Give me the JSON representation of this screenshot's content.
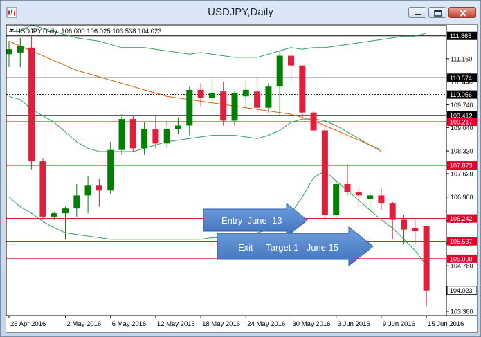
{
  "window": {
    "title": "USDJPY,Daily",
    "icons": {
      "app": "chart-app-icon",
      "minimize": "minimize-icon",
      "maximize": "maximize-icon",
      "close": "close-icon"
    }
  },
  "chart_header": {
    "dropdown_icon": "triangle-down-icon",
    "info": "USDJPY,Daily  106.000 106.025 103.538 104.023"
  },
  "chart_data": {
    "type": "candlestick",
    "symbol": "USDJPY",
    "timeframe": "Daily",
    "ylim": [
      103.25,
      112.2
    ],
    "y_ticks": [
      "111.160",
      "110.440",
      "109.740",
      "109.040",
      "108.320",
      "107.620",
      "106.900",
      "106.180",
      "105.480",
      "104.780",
      "103.380"
    ],
    "x_ticks": [
      "26 Apr 2016",
      "2 May 2016",
      "6 May 2016",
      "12 May 2016",
      "18 May 2016",
      "24 May 2016",
      "30 May 2016",
      "3 Jun 2016",
      "9 Jun 2016",
      "15 Jun 2016"
    ],
    "x_tick_index": [
      0,
      5,
      9,
      13,
      17,
      21,
      25,
      29,
      33,
      37
    ],
    "candles": [
      {
        "o": 111.3,
        "h": 111.7,
        "l": 110.9,
        "c": 111.45
      },
      {
        "o": 111.35,
        "h": 111.8,
        "l": 110.9,
        "c": 111.55
      },
      {
        "o": 111.5,
        "h": 111.9,
        "l": 107.75,
        "c": 108.0
      },
      {
        "o": 108.0,
        "h": 108.1,
        "l": 106.2,
        "c": 106.3
      },
      {
        "o": 106.3,
        "h": 106.45,
        "l": 106.2,
        "c": 106.4
      },
      {
        "o": 106.4,
        "h": 106.6,
        "l": 105.6,
        "c": 106.55
      },
      {
        "o": 106.55,
        "h": 107.3,
        "l": 106.3,
        "c": 106.95
      },
      {
        "o": 106.95,
        "h": 107.55,
        "l": 106.4,
        "c": 107.25
      },
      {
        "o": 107.25,
        "h": 107.45,
        "l": 106.6,
        "c": 107.1
      },
      {
        "o": 107.1,
        "h": 108.6,
        "l": 107.0,
        "c": 108.35
      },
      {
        "o": 108.35,
        "h": 109.45,
        "l": 108.2,
        "c": 109.3
      },
      {
        "o": 109.3,
        "h": 109.4,
        "l": 108.3,
        "c": 108.4
      },
      {
        "o": 108.4,
        "h": 109.2,
        "l": 108.2,
        "c": 109.0
      },
      {
        "o": 109.0,
        "h": 109.4,
        "l": 108.4,
        "c": 108.55
      },
      {
        "o": 108.55,
        "h": 109.2,
        "l": 108.45,
        "c": 109.0
      },
      {
        "o": 109.0,
        "h": 109.35,
        "l": 108.85,
        "c": 109.1
      },
      {
        "o": 109.1,
        "h": 110.3,
        "l": 108.8,
        "c": 110.2
      },
      {
        "o": 110.2,
        "h": 110.4,
        "l": 109.7,
        "c": 109.95
      },
      {
        "o": 109.95,
        "h": 110.55,
        "l": 109.6,
        "c": 110.1
      },
      {
        "o": 110.15,
        "h": 110.45,
        "l": 109.1,
        "c": 109.25
      },
      {
        "o": 109.25,
        "h": 110.15,
        "l": 109.1,
        "c": 110.1
      },
      {
        "o": 110.0,
        "h": 110.5,
        "l": 109.6,
        "c": 110.2
      },
      {
        "o": 110.15,
        "h": 110.6,
        "l": 109.5,
        "c": 109.65
      },
      {
        "o": 109.65,
        "h": 110.4,
        "l": 109.5,
        "c": 110.3
      },
      {
        "o": 110.3,
        "h": 111.4,
        "l": 109.4,
        "c": 111.25
      },
      {
        "o": 111.25,
        "h": 111.4,
        "l": 110.45,
        "c": 110.95
      },
      {
        "o": 110.95,
        "h": 110.95,
        "l": 109.35,
        "c": 109.5
      },
      {
        "o": 109.5,
        "h": 109.55,
        "l": 108.95,
        "c": 108.95
      },
      {
        "o": 108.95,
        "h": 109.05,
        "l": 106.2,
        "c": 106.35
      },
      {
        "o": 106.35,
        "h": 107.4,
        "l": 106.25,
        "c": 107.3
      },
      {
        "o": 107.3,
        "h": 107.9,
        "l": 106.95,
        "c": 107.05
      },
      {
        "o": 107.05,
        "h": 107.2,
        "l": 106.6,
        "c": 106.95
      },
      {
        "o": 106.85,
        "h": 107.05,
        "l": 106.4,
        "c": 106.95
      },
      {
        "o": 106.95,
        "h": 107.2,
        "l": 106.5,
        "c": 106.7
      },
      {
        "o": 106.7,
        "h": 106.75,
        "l": 105.6,
        "c": 106.2
      },
      {
        "o": 106.2,
        "h": 106.35,
        "l": 105.45,
        "c": 105.9
      },
      {
        "o": 105.95,
        "h": 106.25,
        "l": 105.45,
        "c": 105.85
      },
      {
        "o": 106.0,
        "h": 106.025,
        "l": 103.538,
        "c": 104.023
      }
    ],
    "moving_average": {
      "name": "orange-moving-average",
      "values": [
        111.7,
        111.55,
        111.4,
        111.25,
        111.1,
        110.95,
        110.8,
        110.7,
        110.6,
        110.5,
        110.4,
        110.3,
        110.2,
        110.1,
        110.0,
        109.95,
        109.9,
        109.85,
        109.8,
        109.75,
        109.7,
        109.65,
        109.6,
        109.55,
        109.5,
        109.45,
        109.35,
        109.25,
        109.1,
        108.95,
        108.8,
        108.65,
        108.5,
        108.35
      ]
    },
    "bollinger": {
      "upper": [
        112.0,
        112.0,
        112.2,
        112.1,
        112.0,
        111.9,
        111.8,
        111.75,
        111.7,
        111.6,
        111.5,
        111.5,
        111.5,
        111.45,
        111.4,
        111.35,
        111.3,
        111.35,
        111.3,
        111.25,
        111.2,
        111.2,
        111.2,
        111.3,
        111.4,
        111.5,
        111.45,
        111.5,
        111.5,
        111.55,
        111.6,
        111.65,
        111.7,
        111.75,
        111.8,
        111.85,
        111.85,
        111.95
      ],
      "middle": [
        110.0,
        109.9,
        109.6,
        109.4,
        109.2,
        108.9,
        108.6,
        108.4,
        108.3,
        108.3,
        108.3,
        108.3,
        108.4,
        108.5,
        108.6,
        108.65,
        108.7,
        108.75,
        108.8,
        108.8,
        108.8,
        108.75,
        108.7,
        108.8,
        108.95,
        109.2,
        109.3,
        109.3,
        109.25,
        109.1,
        108.9,
        108.7,
        108.5,
        108.3
      ]
    },
    "lower_band": {
      "values": [
        106.9,
        106.6,
        106.4,
        106.15,
        105.95,
        105.8,
        105.75,
        105.7,
        105.65,
        105.6,
        105.6,
        105.6,
        105.6,
        105.6,
        105.6,
        105.6,
        105.6,
        105.6,
        105.65,
        105.65,
        105.7,
        105.75,
        105.8,
        105.9,
        106.1,
        106.4,
        106.9,
        107.5,
        107.7,
        107.4,
        107.1,
        106.8,
        106.5,
        106.2,
        105.95,
        105.6,
        105.25,
        104.8
      ]
    },
    "horizontal_lines": [
      {
        "value": 111.865,
        "label": "111.865",
        "kind": "black"
      },
      {
        "value": 110.574,
        "label": "110.574",
        "kind": "black"
      },
      {
        "value": 110.056,
        "label": "110.056",
        "kind": "dotted"
      },
      {
        "value": 109.412,
        "label": "109.412",
        "kind": "black"
      },
      {
        "value": 109.217,
        "label": "109.217",
        "kind": "red"
      },
      {
        "value": 107.873,
        "label": "107.873",
        "kind": "red"
      },
      {
        "value": 106.242,
        "label": "106.242",
        "kind": "red"
      },
      {
        "value": 105.537,
        "label": "105.537",
        "kind": "red"
      },
      {
        "value": 105.0,
        "label": "105.000",
        "kind": "red"
      },
      {
        "value": 104.023,
        "label": "104.023",
        "kind": "price"
      }
    ],
    "annotations": [
      {
        "text": "Entry  June  13"
      },
      {
        "text": "Exit -   Target 1 - June 15"
      }
    ],
    "colors": {
      "bull": "#008000",
      "bear": "#e0203a",
      "ma": "#e05a00",
      "bands": "#2e9e5e",
      "red_line": "#d40000",
      "axis_red": "#e4002b"
    }
  }
}
